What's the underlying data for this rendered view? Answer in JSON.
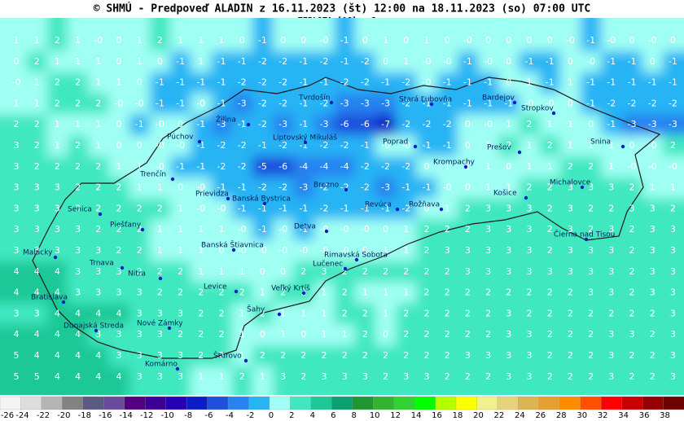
{
  "header": {
    "title": "© SHMÚ - Predpoveď ALADIN z 16.11.2023 (št) 12:00 na 18.11.2023 (so) 07:00 UTC",
    "subtitle": "TEPLOTA [°C] v 2 m"
  },
  "grid": [
    [
      "1",
      "1",
      "2",
      "1",
      "-0",
      "0",
      "1",
      "2",
      "1",
      "1",
      "1",
      "0",
      "-1",
      "0",
      "0",
      "-0",
      "-1",
      "0",
      "1",
      "0",
      "1",
      "0",
      "-0",
      "0",
      "0",
      "0",
      "0",
      "-0",
      "-1",
      "-0",
      "0",
      "-0",
      "0"
    ],
    [
      "0",
      "2",
      "1",
      "1",
      "1",
      "0",
      "1",
      "0",
      "-1",
      "1",
      "-1",
      "-1",
      "-2",
      "-2",
      "-1",
      "-2",
      "-1",
      "-2",
      "0",
      "1",
      "-0",
      "-0",
      "-1",
      "-0",
      "0",
      "-1",
      "-1",
      "0",
      "-0",
      "-1",
      "-1",
      "0",
      "-1"
    ],
    [
      "-0",
      "1",
      "2",
      "2",
      "1",
      "1",
      "0",
      "-1",
      "-1",
      "-1",
      "-1",
      "-2",
      "-2",
      "-2",
      "-1",
      "-1",
      "-2",
      "-2",
      "-1",
      "-2",
      "-0",
      "-1",
      "-1",
      "-1",
      "0",
      "1",
      "-1",
      "1",
      "-1",
      "-1",
      "-1",
      "-1",
      "-1"
    ],
    [
      "1",
      "1",
      "2",
      "2",
      "2",
      "-0",
      "-0",
      "-1",
      "-1",
      "-0",
      "-1",
      "-3",
      "-2",
      "-2",
      "-1",
      "-2",
      "-3",
      "-3",
      "-3",
      "-2",
      "-1",
      "-1",
      "-1",
      "-1",
      "-1",
      "-0",
      "-0",
      "0",
      "-1",
      "-2",
      "-2",
      "-2",
      "-2"
    ],
    [
      "2",
      "2",
      "1",
      "1",
      "1",
      "0",
      "-1",
      "-0",
      "0",
      "-1",
      "-3",
      "-1",
      "-2",
      "-3",
      "-1",
      "-3",
      "-6",
      "-6",
      "-7",
      "-2",
      "-2",
      "-2",
      "0",
      "-0",
      "1",
      "2",
      "1",
      "1",
      "0",
      "-1",
      "-3",
      "-3",
      "-3"
    ],
    [
      "3",
      "2",
      "1",
      "2",
      "1",
      "0",
      "0",
      "-0",
      "-0",
      "-1",
      "-2",
      "-2",
      "-1",
      "-2",
      "-1",
      "-2",
      "-2",
      "-1",
      "-0",
      "-0",
      "-1",
      "-1",
      "0",
      "1",
      "2",
      "1",
      "2",
      "1",
      "1",
      "1",
      "0",
      "-0",
      "2"
    ],
    [
      "3",
      "2",
      "2",
      "2",
      "2",
      "1",
      "1",
      "-0",
      "-1",
      "-1",
      "-2",
      "-2",
      "-5",
      "-6",
      "-4",
      "-4",
      "-4",
      "-2",
      "-2",
      "-2",
      "0",
      "1",
      "1",
      "1",
      "0",
      "1",
      "1",
      "2",
      "2",
      "1",
      "-0",
      "-0",
      "-0"
    ],
    [
      "3",
      "3",
      "3",
      "2",
      "2",
      "2",
      "1",
      "1",
      "0",
      "-0",
      "-1",
      "-1",
      "-2",
      "-2",
      "-3",
      "-2",
      "-2",
      "-2",
      "-3",
      "-1",
      "-1",
      "-0",
      "0",
      "1",
      "1",
      "2",
      "2",
      "3",
      "3",
      "3",
      "2",
      "1",
      "1"
    ],
    [
      "3",
      "3",
      "3",
      "3",
      "2",
      "2",
      "2",
      "2",
      "1",
      "-0",
      "-0",
      "-1",
      "-1",
      "-1",
      "-1",
      "-2",
      "-1",
      "-1",
      "-1",
      "-2",
      "0",
      "1",
      "2",
      "3",
      "3",
      "3",
      "2",
      "3",
      "2",
      "2",
      "3",
      "3",
      "2"
    ],
    [
      "3",
      "3",
      "3",
      "3",
      "2",
      "2",
      "2",
      "1",
      "1",
      "1",
      "1",
      "-0",
      "-1",
      "-0",
      "-1",
      "-0",
      "-0",
      "-0",
      "0",
      "1",
      "2",
      "2",
      "2",
      "3",
      "3",
      "3",
      "2",
      "3",
      "2",
      "3",
      "2",
      "3",
      "3"
    ],
    [
      "3",
      "3",
      "3",
      "3",
      "3",
      "2",
      "2",
      "1",
      "1",
      "1",
      "0",
      "-0",
      "-0",
      "-0",
      "-0",
      "-0",
      "-0",
      "0",
      "1",
      "1",
      "2",
      "3",
      "3",
      "3",
      "3",
      "3",
      "2",
      "3",
      "3",
      "3",
      "2",
      "3",
      "3"
    ],
    [
      "4",
      "4",
      "4",
      "3",
      "3",
      "3",
      "2",
      "2",
      "2",
      "1",
      "1",
      "1",
      "0",
      "0",
      "2",
      "3",
      "2",
      "2",
      "2",
      "2",
      "2",
      "2",
      "3",
      "3",
      "3",
      "3",
      "3",
      "3",
      "3",
      "3",
      "2",
      "3",
      "3"
    ],
    [
      "4",
      "4",
      "4",
      "3",
      "3",
      "3",
      "3",
      "2",
      "2",
      "2",
      "2",
      "2",
      "1",
      "2",
      "2",
      "1",
      "2",
      "1",
      "1",
      "1",
      "2",
      "2",
      "2",
      "2",
      "2",
      "2",
      "2",
      "2",
      "3",
      "3",
      "2",
      "3",
      "3"
    ],
    [
      "3",
      "3",
      "4",
      "4",
      "4",
      "4",
      "3",
      "3",
      "3",
      "2",
      "2",
      "1",
      "2",
      "1",
      "1",
      "1",
      "2",
      "2",
      "1",
      "2",
      "2",
      "2",
      "2",
      "2",
      "3",
      "2",
      "2",
      "2",
      "2",
      "2",
      "2",
      "2",
      "3"
    ],
    [
      "4",
      "4",
      "4",
      "4",
      "3",
      "3",
      "3",
      "3",
      "2",
      "2",
      "2",
      "1",
      "0",
      "1",
      "0",
      "1",
      "1",
      "2",
      "0",
      "2",
      "2",
      "2",
      "2",
      "2",
      "3",
      "3",
      "2",
      "2",
      "2",
      "3",
      "3",
      "2",
      "3"
    ],
    [
      "5",
      "4",
      "4",
      "4",
      "4",
      "3",
      "3",
      "3",
      "3",
      "2",
      "2",
      "1",
      "2",
      "2",
      "2",
      "2",
      "2",
      "2",
      "2",
      "2",
      "2",
      "2",
      "3",
      "3",
      "3",
      "3",
      "2",
      "2",
      "2",
      "3",
      "2",
      "2",
      "3"
    ],
    [
      "5",
      "5",
      "4",
      "4",
      "4",
      "4",
      "3",
      "3",
      "3",
      "1",
      "1",
      "2",
      "1",
      "3",
      "2",
      "3",
      "3",
      "3",
      "2",
      "3",
      "3",
      "2",
      "2",
      "2",
      "3",
      "3",
      "2",
      "2",
      "2",
      "3",
      "2",
      "2",
      "3"
    ]
  ],
  "cities": [
    "Bardejov",
    "Stropkov",
    "Tvrdošín",
    "Stará Ľubovňa",
    "Žilina",
    "Púchov",
    "Liptovský Mikuláš",
    "Poprad",
    "Prešov",
    "Snina",
    "Trenčín",
    "Krompachy",
    "Michalovce",
    "Prievidza",
    "Banská Bystrica",
    "Brezno",
    "Košice",
    "Revúca",
    "Rožňava",
    "Senica",
    "Piešťany",
    "Detva",
    "Čierna nad Tisou",
    "Malacky",
    "Banská Štiavnica",
    "Rimavská Sobota",
    "Trnava",
    "Lučenec",
    "Nitra",
    "Levice",
    "Veľký Krtíš",
    "Bratislava",
    "Šahy",
    "Dunajská Streda",
    "Nové Zámky",
    "Štúrovo",
    "Komárno"
  ],
  "colorbar": {
    "ticks": [
      -26,
      -24,
      -22,
      -20,
      -18,
      -16,
      -14,
      -12,
      -10,
      -8,
      -6,
      -4,
      -2,
      0,
      2,
      4,
      6,
      8,
      10,
      12,
      14,
      16,
      18,
      20,
      22,
      24,
      26,
      28,
      30,
      32,
      34,
      36,
      38
    ],
    "colors": [
      "#f4f4f4",
      "#dcdcdc",
      "#b4b4b4",
      "#828282",
      "#5a5a82",
      "#6a4a9a",
      "#500080",
      "#3c0096",
      "#2800b4",
      "#0a1ec8",
      "#1e50dc",
      "#2882f0",
      "#28b4f4",
      "#a0fff4",
      "#40e8c0",
      "#1ec896",
      "#0aa070",
      "#1e9632",
      "#32b432",
      "#32d232",
      "#00ff00",
      "#b4ff00",
      "#ffff00",
      "#f0f08c",
      "#e6d278",
      "#dcb450",
      "#e6a032",
      "#ff8c00",
      "#ff5000",
      "#ff0000",
      "#c80000",
      "#960000",
      "#6e0000"
    ]
  }
}
